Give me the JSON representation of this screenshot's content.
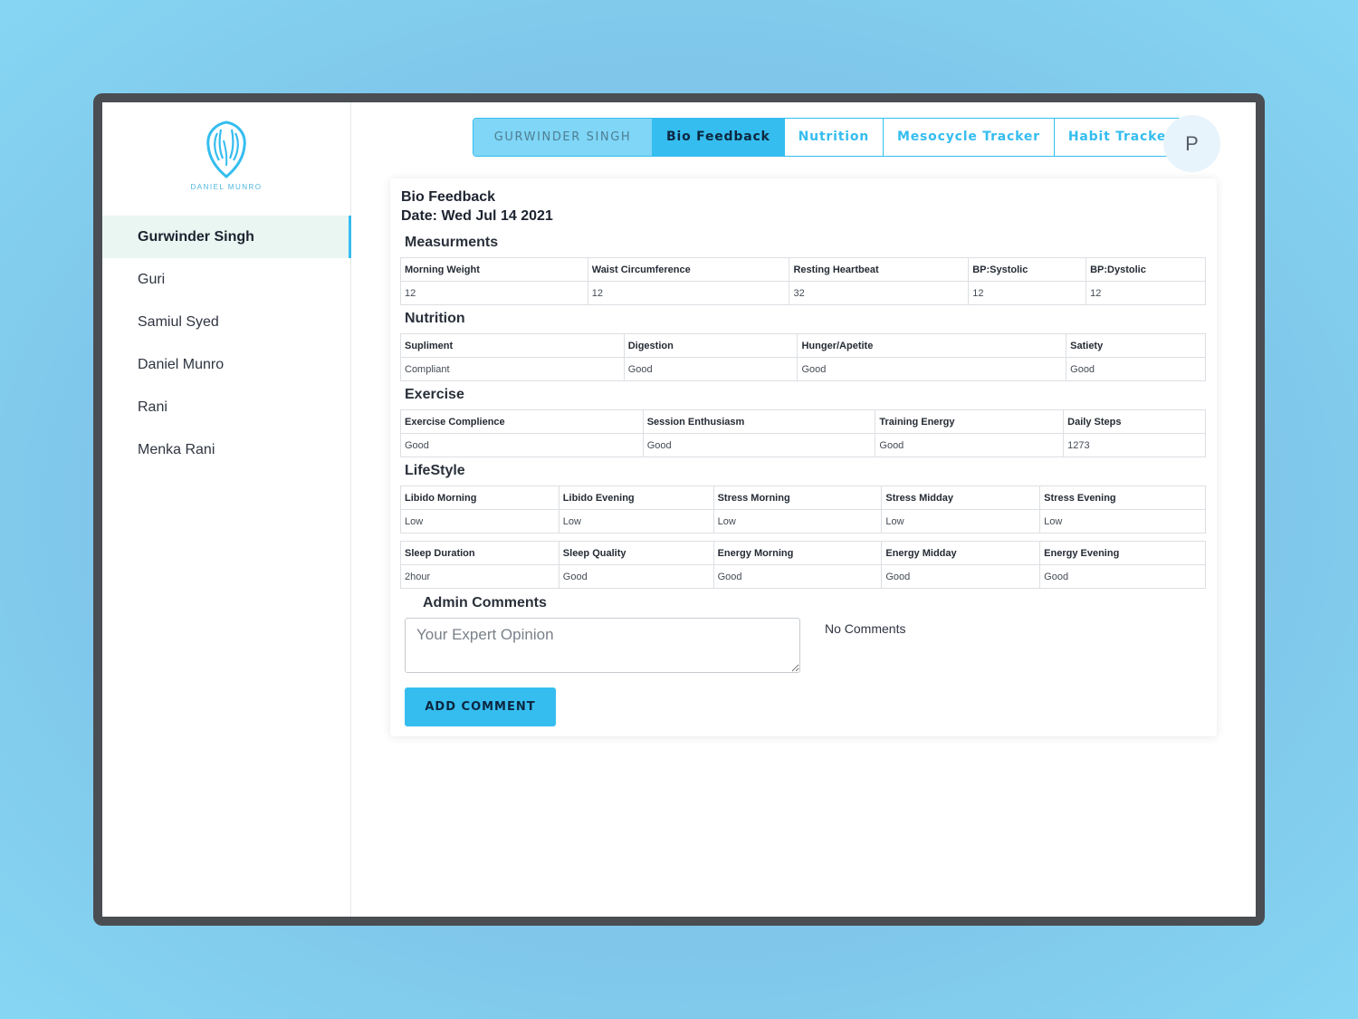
{
  "brand": {
    "logo_text": "DANIEL MUNRO",
    "logo_sub": "",
    "accent": "#35bdef"
  },
  "sidebar": {
    "items": [
      {
        "label": "Gurwinder Singh",
        "active": true
      },
      {
        "label": "Guri"
      },
      {
        "label": "Samiul Syed"
      },
      {
        "label": "Daniel Munro"
      },
      {
        "label": "Rani"
      },
      {
        "label": "Menka Rani"
      }
    ]
  },
  "header": {
    "tabs": [
      "GURWINDER SINGH",
      "Bio Feedback",
      "Nutrition",
      "Mesocycle Tracker",
      "Habit Tracker"
    ],
    "active_tab": "Bio Feedback",
    "avatar_initial": "P"
  },
  "card": {
    "title": "Bio Feedback",
    "date": "Date: Wed Jul 14 2021",
    "measurements": {
      "title": "Measurments",
      "headers": [
        "Morning Weight",
        "Waist Circumference",
        "Resting Heartbeat",
        "BP:Systolic",
        "BP:Dystolic"
      ],
      "values": [
        "12",
        "12",
        "32",
        "12",
        "12"
      ]
    },
    "nutrition": {
      "title": "Nutrition",
      "headers": [
        "Supliment",
        "Digestion",
        "Hunger/Apetite",
        "Satiety"
      ],
      "values": [
        "Compliant",
        "Good",
        "Good",
        "Good"
      ]
    },
    "exercise": {
      "title": "Exercise",
      "headers": [
        "Exercise Complience",
        "Session Enthusiasm",
        "Training Energy",
        "Daily Steps"
      ],
      "values": [
        "Good",
        "Good",
        "Good",
        "1273"
      ]
    },
    "lifestyle": {
      "title": "LifeStyle",
      "headers1": [
        "Libido Morning",
        "Libido Evening",
        "Stress Morning",
        "Stress Midday",
        "Stress Evening"
      ],
      "values1": [
        "Low",
        "Low",
        "Low",
        "Low",
        "Low"
      ],
      "headers2": [
        "Sleep Duration",
        "Sleep Quality",
        "Energy Morning",
        "Energy Midday",
        "Energy Evening"
      ],
      "values2": [
        "2hour",
        "Good",
        "Good",
        "Good",
        "Good"
      ]
    },
    "admin": {
      "title": "Admin Comments",
      "placeholder": "Your Expert Opinion",
      "no_comments": "No Comments",
      "button": "ADD COMMENT"
    }
  }
}
